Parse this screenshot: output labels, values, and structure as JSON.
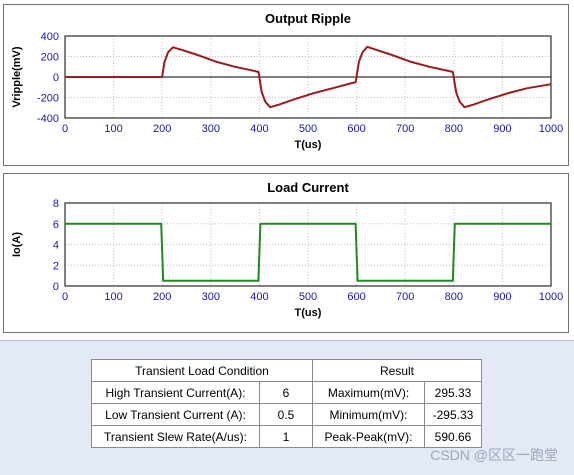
{
  "chart_data": [
    {
      "type": "line",
      "title": "Output Ripple",
      "xlabel": "T(us)",
      "ylabel": "Vripple(mV)",
      "xlim": [
        0,
        1000
      ],
      "ylim": [
        -400,
        400
      ],
      "xticks": [
        "0",
        "100",
        "200",
        "300",
        "400",
        "500",
        "600",
        "700",
        "800",
        "900",
        "1000"
      ],
      "yticks": [
        "400",
        "200",
        "0",
        "-200",
        "-400"
      ],
      "grid": true,
      "line_color": "#9b1c1c",
      "series": [
        {
          "x": [
            0,
            200,
            201,
            205,
            212,
            222,
            240,
            270,
            310,
            350,
            398,
            400,
            401,
            405,
            412,
            422,
            440,
            470,
            510,
            550,
            598,
            600,
            601,
            605,
            612,
            622,
            640,
            670,
            710,
            750,
            798,
            800,
            801,
            805,
            812,
            822,
            840,
            870,
            910,
            950,
            1000
          ],
          "y": [
            0,
            0,
            40,
            150,
            240,
            290,
            265,
            220,
            150,
            100,
            50,
            0,
            -40,
            -150,
            -240,
            -295,
            -270,
            -220,
            -160,
            -110,
            -50,
            0,
            40,
            150,
            240,
            295,
            265,
            220,
            150,
            100,
            50,
            0,
            -40,
            -150,
            -240,
            -295,
            -270,
            -220,
            -160,
            -110,
            -70
          ]
        }
      ]
    },
    {
      "type": "line",
      "title": "Load Current",
      "xlabel": "T(us)",
      "ylabel": "Io(A)",
      "xlim": [
        0,
        1000
      ],
      "ylim": [
        0,
        8
      ],
      "xticks": [
        "0",
        "100",
        "200",
        "300",
        "400",
        "500",
        "600",
        "700",
        "800",
        "900",
        "1000"
      ],
      "yticks": [
        "8",
        "6",
        "4",
        "2",
        "0"
      ],
      "grid": true,
      "line_color": "#1f8a1f",
      "series": [
        {
          "x": [
            0,
            198,
            202,
            398,
            402,
            598,
            602,
            798,
            802,
            1000
          ],
          "y": [
            6,
            6,
            0.5,
            0.5,
            6,
            6,
            0.5,
            0.5,
            6,
            6
          ]
        }
      ]
    }
  ],
  "table": {
    "left_header": "Transient Load Condition",
    "right_header": "Result",
    "rows": [
      {
        "label": "High Transient Current(A):",
        "value": "6",
        "rlabel": "Maximum(mV):",
        "rvalue": "295.33"
      },
      {
        "label": "Low Transient Current (A):",
        "value": "0.5",
        "rlabel": "Minimum(mV):",
        "rvalue": "-295.33"
      },
      {
        "label": "Transient Slew Rate(A/us):",
        "value": "1",
        "rlabel": "Peak-Peak(mV):",
        "rvalue": "590.66"
      }
    ]
  },
  "watermark": "CSDN @区区一跑堂"
}
